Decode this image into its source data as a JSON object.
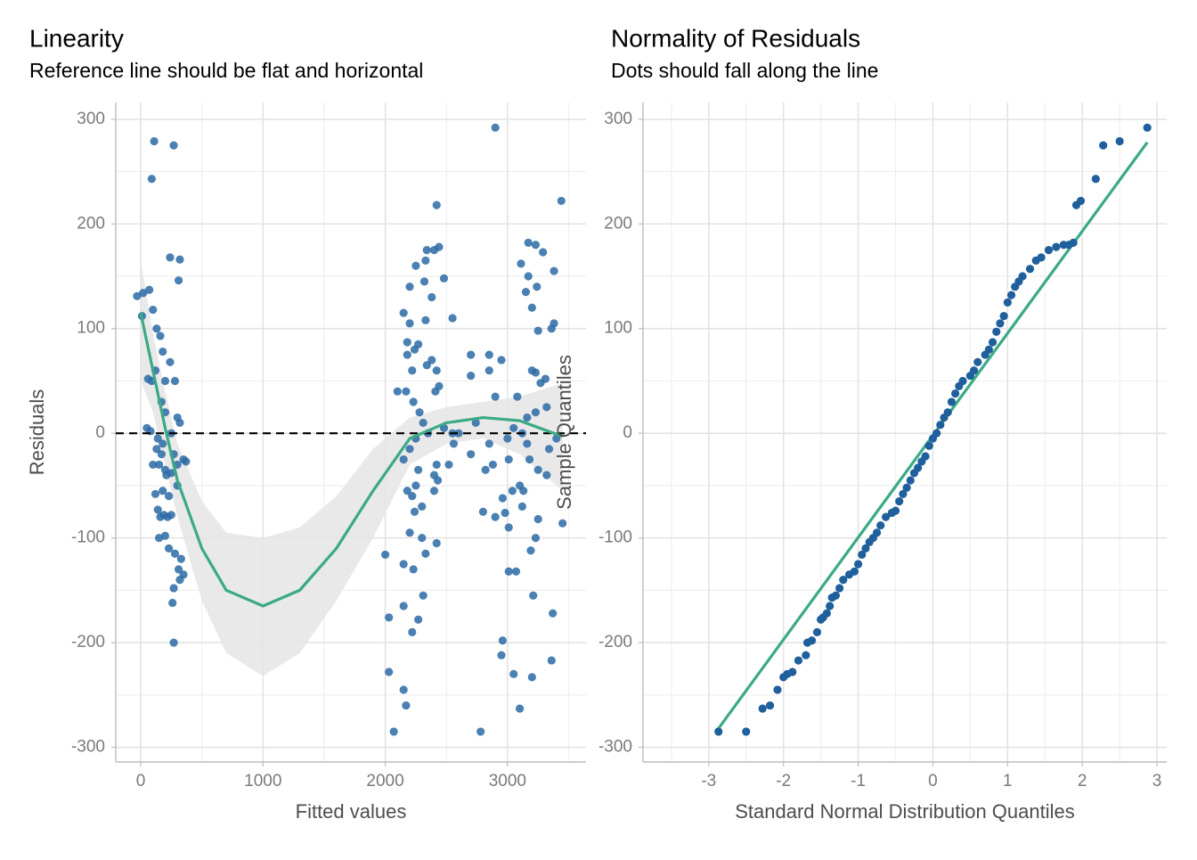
{
  "chart_data": [
    {
      "type": "scatter",
      "title": "Linearity",
      "subtitle": "Reference line should be flat and horizontal",
      "xlabel": "Fitted values",
      "ylabel": "Residuals",
      "xlim": [
        -204,
        3642
      ],
      "ylim": [
        -314,
        316
      ],
      "xticks": [
        0,
        1000,
        2000,
        3000
      ],
      "yticks": [
        -300,
        -200,
        -100,
        0,
        100,
        200,
        300
      ],
      "grid": true,
      "color": "#2a6aa5",
      "x": [
        -30,
        20,
        70,
        10,
        100,
        130,
        160,
        180,
        120,
        60,
        90,
        200,
        240,
        280,
        300,
        320,
        350,
        370,
        50,
        80,
        140,
        170,
        150,
        200,
        250,
        270,
        300,
        120,
        180,
        230,
        140,
        190,
        220,
        250,
        150,
        200,
        230,
        280,
        330,
        310,
        350,
        320,
        270,
        260,
        270,
        90,
        110,
        270,
        240,
        320,
        310,
        170,
        200,
        250,
        180,
        210,
        130,
        300,
        100,
        160,
        2000,
        2030,
        2030,
        2070,
        2150,
        2170,
        2150,
        2220,
        2270,
        2150,
        2230,
        2330,
        2310,
        2420,
        2300,
        2240,
        2180,
        2250,
        2200,
        2150,
        2200,
        2250,
        2310,
        2350,
        2280,
        2230,
        2170,
        2100,
        2220,
        2180,
        2240,
        2180,
        2150,
        2200,
        2270,
        2340,
        2380,
        2420,
        2440,
        2410,
        2270,
        2400,
        2430,
        2420,
        2400,
        2300,
        2220,
        2200,
        2250,
        2320,
        2330,
        2340,
        2400,
        2440,
        2380,
        2480,
        2330,
        2420,
        2550,
        2480,
        2550,
        2600,
        2520,
        2560,
        2700,
        2700,
        2850,
        2850,
        2950,
        2780,
        2800,
        2900,
        2880,
        2820,
        2960,
        2980,
        2960,
        2950,
        3050,
        3100,
        3010,
        3070,
        3010,
        3120,
        3210,
        3190,
        3230,
        3250,
        3200,
        3370,
        3360,
        3450,
        3440,
        2900,
        3230,
        3170,
        3290,
        3110,
        3170,
        3380,
        3150,
        3240,
        3200,
        3250,
        3360,
        3380,
        3200,
        3230,
        3310,
        3270,
        3160,
        3230,
        3320,
        3080,
        3050,
        3120,
        3160,
        3180,
        3250,
        3320,
        3100,
        3130,
        3340,
        3400,
        3010,
        3040,
        2700,
        2740,
        2900,
        2850,
        3000
      ],
      "y": [
        131,
        134,
        137,
        112,
        118,
        100,
        93,
        78,
        60,
        52,
        50,
        50,
        68,
        50,
        15,
        10,
        -25,
        -27,
        5,
        2,
        -5,
        -20,
        -30,
        -35,
        -38,
        -20,
        -30,
        -58,
        -55,
        -60,
        -73,
        -78,
        -80,
        -78,
        -100,
        -98,
        -110,
        -115,
        -120,
        -130,
        -135,
        -140,
        -148,
        -162,
        -200,
        243,
        279,
        275,
        168,
        166,
        146,
        30,
        20,
        0,
        -10,
        -40,
        -15,
        -50,
        -30,
        -80,
        -116,
        -176,
        -228,
        -285,
        -245,
        -260,
        -165,
        -190,
        -178,
        -125,
        -130,
        -115,
        -155,
        -105,
        -100,
        -75,
        -55,
        -50,
        -95,
        -25,
        -15,
        -5,
        10,
        0,
        20,
        30,
        40,
        40,
        60,
        75,
        80,
        87,
        115,
        105,
        85,
        65,
        70,
        60,
        45,
        40,
        -35,
        -40,
        -45,
        -30,
        -55,
        -70,
        -60,
        140,
        160,
        145,
        165,
        175,
        175,
        178,
        130,
        148,
        108,
        218,
        110,
        5,
        0,
        0,
        -30,
        -10,
        75,
        55,
        75,
        60,
        70,
        -285,
        -75,
        -80,
        -30,
        -35,
        -62,
        -76,
        -198,
        -212,
        -230,
        -263,
        -132,
        -132,
        -90,
        -70,
        -155,
        -112,
        -100,
        -82,
        -233,
        -172,
        -217,
        -86,
        222,
        292,
        180,
        182,
        173,
        162,
        150,
        155,
        135,
        140,
        120,
        98,
        100,
        105,
        60,
        58,
        52,
        48,
        15,
        20,
        25,
        35,
        5,
        0,
        -10,
        -25,
        -35,
        -40,
        -50,
        -55,
        -15,
        -5,
        -25,
        -55,
        -20,
        10,
        35,
        -10,
        -5
      ],
      "smooth": {
        "color": "#3aaa85",
        "band_color": "#e5e5e5",
        "x": [
          0,
          100,
          200,
          300,
          500,
          700,
          1000,
          1300,
          1600,
          1900,
          2200,
          2500,
          2800,
          3100,
          3450
        ],
        "y": [
          115,
          60,
          5,
          -45,
          -110,
          -150,
          -165,
          -150,
          -110,
          -55,
          -5,
          10,
          15,
          12,
          -3
        ],
        "lower": [
          50,
          20,
          -30,
          -80,
          -160,
          -210,
          -232,
          -210,
          -160,
          -100,
          -30,
          -10,
          -5,
          -20,
          -55
        ],
        "upper": [
          165,
          95,
          40,
          -10,
          -65,
          -95,
          -100,
          -90,
          -60,
          -15,
          15,
          25,
          30,
          35,
          48
        ]
      },
      "reference_line": {
        "y": 0,
        "color": "#000000"
      }
    },
    {
      "type": "qq",
      "title": "Normality of Residuals",
      "subtitle": "Dots should fall along the line",
      "xlabel": "Standard Normal Distribution Quantiles",
      "ylabel": "Sample Quantiles",
      "xlim": [
        -3.88,
        3.13
      ],
      "ylim": [
        -314,
        316
      ],
      "xticks": [
        -3,
        -2,
        -1,
        0,
        1,
        2,
        3
      ],
      "yticks": [
        -300,
        -200,
        -100,
        0,
        100,
        200,
        300
      ],
      "grid": true,
      "color": "#1f5f9c",
      "x": [
        -2.87,
        -2.5,
        -2.28,
        -2.18,
        -2.08,
        -2.0,
        -1.95,
        -1.88,
        -1.8,
        -1.7,
        -1.68,
        -1.62,
        -1.55,
        -1.5,
        -1.47,
        -1.42,
        -1.38,
        -1.35,
        -1.3,
        -1.25,
        -1.2,
        -1.12,
        -1.05,
        -1.0,
        -0.95,
        -0.9,
        -0.85,
        -0.8,
        -0.75,
        -0.7,
        -0.63,
        -0.55,
        -0.5,
        -0.45,
        -0.4,
        -0.35,
        -0.3,
        -0.25,
        -0.2,
        -0.15,
        -0.1,
        -0.05,
        0,
        0.05,
        0.1,
        0.15,
        0.2,
        0.25,
        0.3,
        0.35,
        0.4,
        0.5,
        0.55,
        0.6,
        0.7,
        0.75,
        0.8,
        0.85,
        0.9,
        0.95,
        1.0,
        1.05,
        1.1,
        1.15,
        1.2,
        1.3,
        1.38,
        1.45,
        1.55,
        1.65,
        1.75,
        1.82,
        1.88,
        1.92,
        1.98,
        2.18,
        2.28,
        2.5,
        2.87
      ],
      "y": [
        -285,
        -285,
        -263,
        -260,
        -245,
        -233,
        -230,
        -228,
        -217,
        -212,
        -200,
        -198,
        -190,
        -178,
        -176,
        -172,
        -165,
        -157,
        -155,
        -148,
        -140,
        -135,
        -132,
        -125,
        -116,
        -110,
        -104,
        -100,
        -95,
        -88,
        -80,
        -76,
        -74,
        -65,
        -58,
        -52,
        -45,
        -38,
        -33,
        -27,
        -22,
        -12,
        -5,
        0,
        8,
        15,
        20,
        30,
        38,
        45,
        50,
        55,
        60,
        68,
        75,
        80,
        87,
        97,
        105,
        112,
        125,
        132,
        140,
        145,
        150,
        157,
        165,
        168,
        175,
        178,
        180,
        180,
        182,
        218,
        222,
        243,
        275,
        279,
        292
      ],
      "reference_line": {
        "x": [
          -2.87,
          2.87
        ],
        "y": [
          -282,
          278
        ],
        "color": "#3aaa85"
      }
    }
  ]
}
